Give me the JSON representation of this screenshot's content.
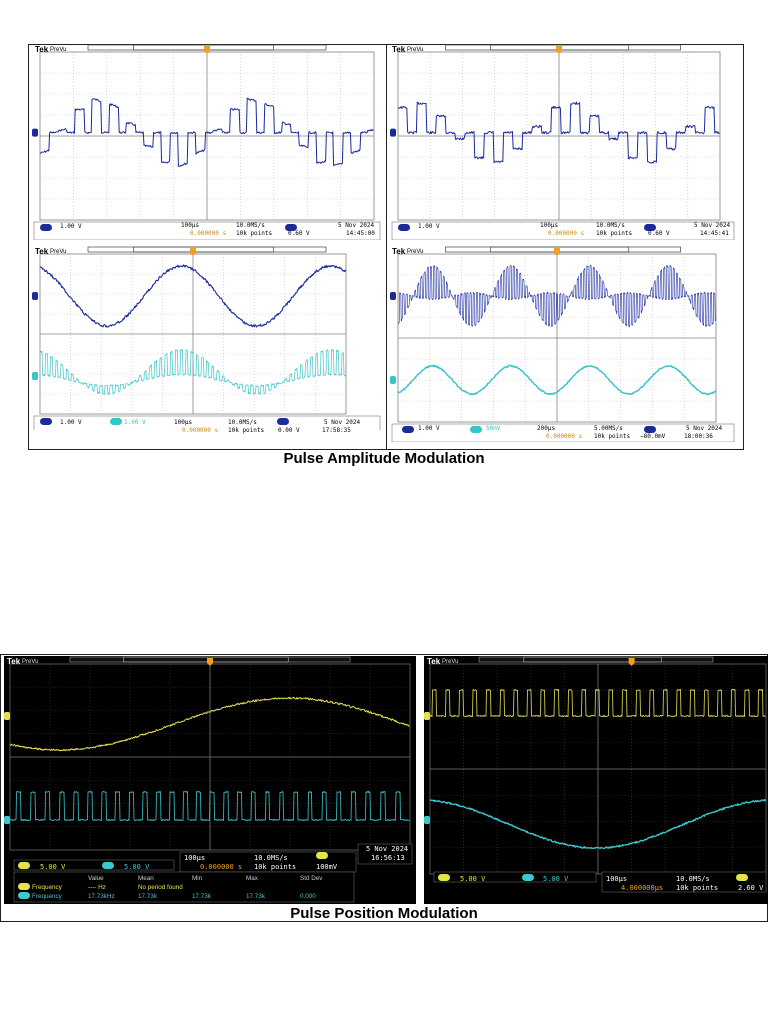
{
  "pam": {
    "caption": "Pulse Amplitude Modulation",
    "scopes": [
      {
        "brand": "Tek",
        "mode": "PreVu",
        "ch1_scale": "1.00 V",
        "ch2_scale": "",
        "timebase": "100µs",
        "trig_pos": "0.000000 s",
        "sample_rate": "10.0MS/s",
        "record": "10k points",
        "trig_level": "0.60 V",
        "date": "5 Nov 2024",
        "time": "14:45:00"
      },
      {
        "brand": "Tek",
        "mode": "PreVu",
        "ch1_scale": "1.00 V",
        "ch2_scale": "",
        "timebase": "100µs",
        "trig_pos": "0.000000 s",
        "sample_rate": "10.0MS/s",
        "record": "10k points",
        "trig_level": "0.60 V",
        "date": "5 Nov 2024",
        "time": "14:45:41"
      },
      {
        "brand": "Tek",
        "mode": "PreVu",
        "ch1_scale": "1.00 V",
        "ch2_scale": "1.00 V",
        "timebase": "100µs",
        "trig_pos": "0.000000 s",
        "sample_rate": "10.0MS/s",
        "record": "10k points",
        "trig_level": "0.00 V",
        "date": "5 Nov 2024",
        "time": "17:58:35"
      },
      {
        "brand": "Tek",
        "mode": "PreVu",
        "ch1_scale": "1.00 V",
        "ch2_scale": "50mV",
        "timebase": "200µs",
        "trig_pos": "0.000000 s",
        "sample_rate": "5.00MS/s",
        "record": "10k points",
        "trig_level": "−80.0mV",
        "date": "5 Nov 2024",
        "time": "18:00:36"
      }
    ]
  },
  "ppm": {
    "caption": "Pulse Position Modulation",
    "left": {
      "brand": "Tek",
      "mode": "PreVu",
      "ch1_scale": "5.00 V",
      "ch2_scale": "5.00 V",
      "timebase": "100µs",
      "trig_pos": "0.000000 s",
      "sample_rate": "10.0MS/s",
      "record": "10k points",
      "trig_level": "100mV",
      "date": "5 Nov 2024",
      "time": "16:56:13",
      "meas_headers": [
        "Value",
        "Mean",
        "Min",
        "Max",
        "Std Dev"
      ],
      "meas_rows": [
        {
          "name": "Frequency",
          "value": "---- Hz",
          "mean": "No period found",
          "min": "",
          "max": "",
          "std": ""
        },
        {
          "name": "Frequency",
          "value": "17.73kHz",
          "mean": "17.73k",
          "min": "17.73k",
          "max": "17.73k",
          "std": "0.000"
        }
      ]
    },
    "right": {
      "brand": "Tek",
      "mode": "PreVu",
      "ch1_scale": "5.00 V",
      "ch2_scale": "5.00 V",
      "timebase": "100µs",
      "trig_pos": "4.000000µs",
      "sample_rate": "10.0MS/s",
      "record": "10k points",
      "trig_level": "2.60 V"
    }
  },
  "colors": {
    "ch1_pam": "#1a2b9c",
    "ch2_pam": "#38c4c8",
    "ch1_ppm": "#e6e34a",
    "ch2_ppm": "#3cc8cf",
    "trigger": "#f0a020",
    "grid_light": "#bfbfbf",
    "screen_dark": "#000000"
  }
}
